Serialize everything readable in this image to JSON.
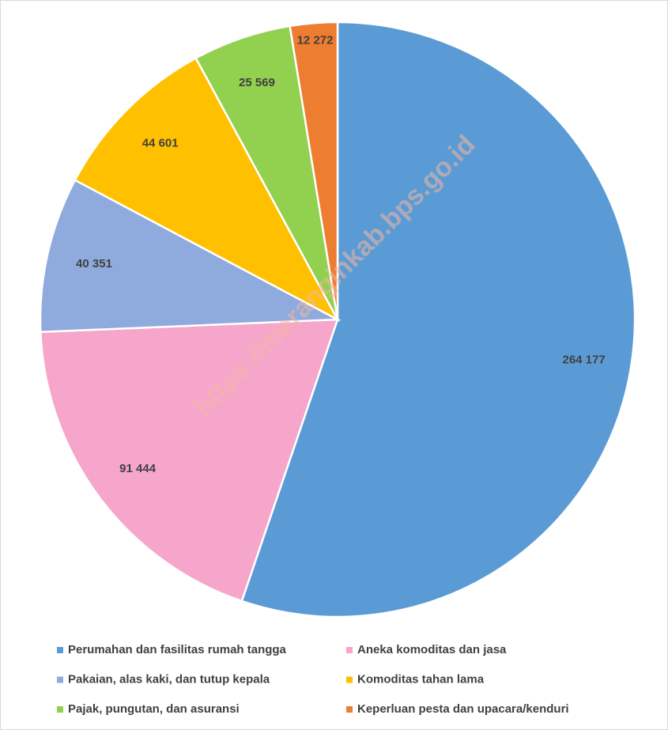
{
  "chart_data": {
    "type": "pie",
    "categories": [
      "Perumahan dan fasilitas rumah tangga",
      "Aneka komoditas dan jasa",
      "Pakaian, alas kaki, dan tutup kepala",
      "Komoditas tahan lama",
      "Pajak, pungutan, dan asuransi",
      "Keperluan pesta dan upacara/kenduri"
    ],
    "values": [
      264177,
      91444,
      40351,
      44601,
      25569,
      12272
    ],
    "value_labels": [
      "264 177",
      "91 444",
      "40 351",
      "44 601",
      "25 569",
      "12 272"
    ],
    "colors": [
      "#5b9bd5",
      "#f7a6cb",
      "#8faadc",
      "#ffc000",
      "#92d050",
      "#ed7d31"
    ],
    "watermark": "https://meranginkab.bps.go.id"
  }
}
